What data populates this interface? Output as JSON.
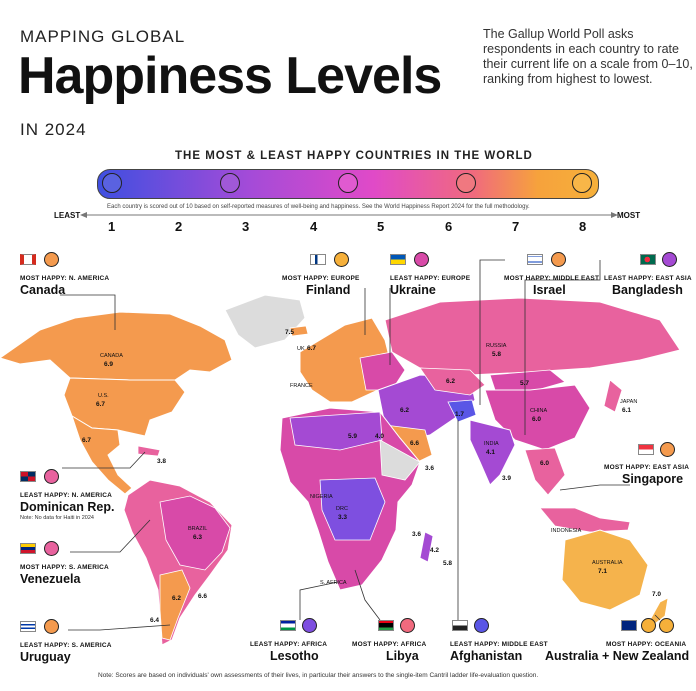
{
  "header": {
    "kicker": "MAPPING GLOBAL",
    "headline": "Happiness Levels",
    "year": "IN 2024",
    "description": "The Gallup World Poll asks respondents in each country to rate their current life on a scale from 0–10, ranking from highest to lowest."
  },
  "scale": {
    "subtitle": "THE MOST & LEAST HAPPY COUNTRIES IN THE WORLD",
    "note": "Each country is scored out of 10 based on self-reported measures of well-being and happiness. See the World Happiness Report 2024 for the full methodology.",
    "least": "LEAST",
    "most": "MOST",
    "ticks": [
      "1",
      "2",
      "3",
      "4",
      "5",
      "6",
      "7",
      "8"
    ],
    "gradient": [
      "#3f4fe0",
      "#a34bd8",
      "#e04ac8",
      "#f06a7e",
      "#f6b03a"
    ]
  },
  "callouts": {
    "canada": {
      "tag": "MOST HAPPY: N. AMERICA",
      "name": "Canada"
    },
    "finland": {
      "tag": "MOST HAPPY: EUROPE",
      "name": "Finland"
    },
    "ukraine": {
      "tag": "LEAST HAPPY: EUROPE",
      "name": "Ukraine"
    },
    "israel": {
      "tag": "MOST HAPPY: MIDDLE EAST",
      "name": "Israel"
    },
    "bangladesh": {
      "tag": "LEAST HAPPY: EAST ASIA",
      "name": "Bangladesh"
    },
    "dominican": {
      "tag": "LEAST HAPPY: N. AMERICA",
      "name": "Dominican Rep.",
      "note": "Note: No data for Haiti in 2024"
    },
    "venezuela": {
      "tag": "MOST HAPPY: S. AMERICA",
      "name": "Venezuela"
    },
    "uruguay": {
      "tag": "LEAST HAPPY: S. AMERICA",
      "name": "Uruguay"
    },
    "singapore": {
      "tag": "MOST HAPPY: EAST ASIA",
      "name": "Singapore"
    },
    "lesotho": {
      "tag": "LEAST HAPPY: AFRICA",
      "name": "Lesotho"
    },
    "libya": {
      "tag": "MOST HAPPY: AFRICA",
      "name": "Libya"
    },
    "afghanistan": {
      "tag": "LEAST HAPPY: MIDDLE EAST",
      "name": "Afghanistan"
    },
    "oceania": {
      "tag": "MOST HAPPY: OCEANIA",
      "name": "Australia + New Zealand"
    }
  },
  "map_labels": {
    "canada": "CANADA",
    "canada_v": "6.9",
    "us": "U.S.",
    "us_v": "6.7",
    "mexico_v": "6.7",
    "brazil": "BRAZIL",
    "brazil_v": "6.3",
    "russia": "RUSSIA",
    "russia_v": "5.8",
    "china": "CHINA",
    "china_v": "6.0",
    "india": "INDIA",
    "india_v": "4.1",
    "japan": "JAPAN",
    "japan_v": "6.1",
    "australia": "AUSTRALIA",
    "australia_v": "7.1",
    "indonesia": "INDONESIA",
    "nigeria": "NIGERIA",
    "drc": "DRC",
    "drc_v": "3.3",
    "safrica": "S. AFRICA",
    "uk": "UK",
    "uk_v": "6.7",
    "france": "FRANCE",
    "v_iceland": "7.5",
    "v_nz": "7.0",
    "v_caribbean": "3.8",
    "v_madagascar": "4.2",
    "v_mauritius": "5.8",
    "v_comoros": "3.6",
    "v_uruguay": "6.6",
    "v_chile": "6.4",
    "v_argentina": "6.2",
    "v_afgh": "1.7",
    "v_mideast": "6.2",
    "v_sahel": "5.9",
    "v_egypt": "4.0",
    "v_saudi": "6.6",
    "v_yemen": "3.6",
    "v_kaz": "6.2",
    "v_mongolia": "5.7",
    "v_seasia": "6.0",
    "v_sri": "3.9"
  },
  "colors": {
    "land_none": "#dcdcdc",
    "orange": "#f49a4e",
    "orange_light": "#f5b34c",
    "pink": "#e8629e",
    "magenta": "#d84aa8",
    "purple": "#a44ad3",
    "violet": "#7e4fe0",
    "blue": "#5a56e6"
  },
  "footnote": "Note: Scores are based on individuals' own assessments of their lives, in particular their answers to the single-item Cantril ladder life-evaluation question."
}
